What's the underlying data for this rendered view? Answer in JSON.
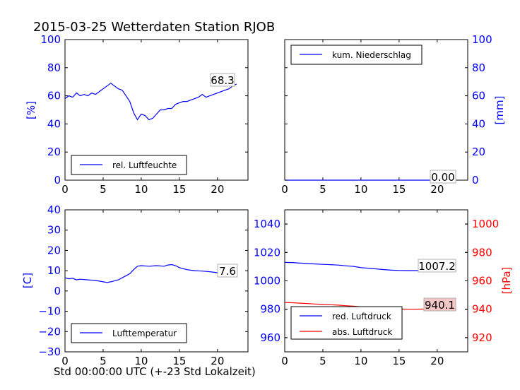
{
  "figure": {
    "title": "2015-03-25 Wetterdaten Station RJOB",
    "xlabel": "Std 00:00:00 UTC (+-23 Std Lokalzeit)"
  },
  "colors": {
    "blue": "#0000ff",
    "red": "#ff0000",
    "black": "#000000",
    "pressure_annotation_bg": "#f4c6c6"
  },
  "chart_data": [
    {
      "id": "humidity",
      "type": "line",
      "xlim": [
        0,
        24
      ],
      "ylim": [
        0,
        100
      ],
      "xticks": [
        "0",
        "5",
        "10",
        "15",
        "20"
      ],
      "yticks": [
        "0",
        "20",
        "40",
        "60",
        "80",
        "100"
      ],
      "ylabel": "[%]",
      "ylabel_side": "left",
      "legend": {
        "location": "lower-left",
        "entries": [
          "rel. Luftfeuchte"
        ]
      },
      "annotation": "68.3",
      "series": [
        {
          "name": "rel. Luftfeuchte",
          "color": "#0000ff",
          "x": [
            0,
            0.5,
            1,
            1.5,
            2,
            2.5,
            3,
            3.5,
            4,
            4.5,
            5,
            5.5,
            6,
            6.5,
            7,
            7.5,
            8,
            8.5,
            9,
            9.5,
            10,
            10.5,
            11,
            11.5,
            12,
            12.5,
            13,
            13.5,
            14,
            14.5,
            15,
            15.5,
            16,
            16.5,
            17,
            17.5,
            18,
            18.5,
            19,
            19.5,
            20,
            20.5,
            21,
            21.5,
            22,
            22.5
          ],
          "y": [
            58,
            60,
            59,
            62,
            60,
            61,
            60,
            62,
            61,
            63,
            65,
            67,
            69,
            67,
            65,
            64,
            60,
            56,
            48,
            43,
            47,
            46,
            43,
            44,
            47,
            50,
            50,
            51,
            51,
            54,
            55,
            56,
            56,
            57,
            58,
            59,
            61,
            59,
            60,
            61,
            62,
            63,
            64,
            65,
            67,
            68.3
          ]
        }
      ]
    },
    {
      "id": "precipitation",
      "type": "line",
      "xlim": [
        0,
        24
      ],
      "ylim": [
        0,
        100
      ],
      "xticks": [
        "0",
        "5",
        "10",
        "15",
        "20"
      ],
      "yticks": [
        "0",
        "20",
        "40",
        "60",
        "80",
        "100"
      ],
      "ylabel": "[mm]",
      "ylabel_side": "right",
      "legend": {
        "location": "upper-left",
        "entries": [
          "kum. Niederschlag"
        ]
      },
      "annotation": "0.00",
      "series": [
        {
          "name": "kum. Niederschlag",
          "color": "#0000ff",
          "x": [
            0,
            22.5
          ],
          "y": [
            0,
            0
          ]
        }
      ]
    },
    {
      "id": "temperature",
      "type": "line",
      "xlim": [
        0,
        24
      ],
      "ylim": [
        -30,
        40
      ],
      "xticks": [
        "0",
        "5",
        "10",
        "15",
        "20"
      ],
      "yticks": [
        "−30",
        "−20",
        "−10",
        "0",
        "10",
        "20",
        "30",
        "40"
      ],
      "ytick_values": [
        -30,
        -20,
        -10,
        0,
        10,
        20,
        30,
        40
      ],
      "ylabel": "[C]",
      "ylabel_side": "left",
      "legend": {
        "location": "lower-left",
        "entries": [
          "Lufttemperatur"
        ]
      },
      "annotation": "7.6",
      "series": [
        {
          "name": "Lufttemperatur",
          "color": "#0000ff",
          "x": [
            0,
            0.5,
            1,
            1.5,
            2,
            3,
            4,
            5,
            5.5,
            6,
            7,
            8,
            8.5,
            9,
            9.5,
            10,
            11,
            12,
            13,
            13.5,
            14,
            14.5,
            15,
            16,
            17,
            18,
            19,
            20,
            21,
            21.5,
            22,
            22.5
          ],
          "y": [
            6.5,
            6,
            6.3,
            5.5,
            5.8,
            5.5,
            5.2,
            4.5,
            4.2,
            4.5,
            5.5,
            7.5,
            8.5,
            10.5,
            12.2,
            12.5,
            12.2,
            12.5,
            12.2,
            12.8,
            13,
            12.5,
            11.5,
            10.5,
            10,
            9.8,
            9.5,
            9,
            8.8,
            8.2,
            7.8,
            7.6
          ]
        }
      ]
    },
    {
      "id": "pressure",
      "type": "line",
      "xlim": [
        0,
        24
      ],
      "xticks": [
        "0",
        "5",
        "10",
        "15",
        "20"
      ],
      "ylim_left": [
        950,
        1050
      ],
      "yticks_left": [
        "960",
        "980",
        "1000",
        "1020",
        "1040"
      ],
      "ylim_right": [
        910,
        1010
      ],
      "yticks_right": [
        "920",
        "940",
        "960",
        "980",
        "1000"
      ],
      "ylabel_right": "[hPa]",
      "legend": {
        "location": "lower-left",
        "entries": [
          "red. Luftdruck",
          "abs. Luftdruck"
        ]
      },
      "annotations": [
        "1007.2",
        "940.1"
      ],
      "series": [
        {
          "name": "red. Luftdruck",
          "axis": "left",
          "color": "#0000ff",
          "x": [
            0,
            1,
            2,
            3,
            4,
            5,
            6,
            7,
            8,
            9,
            10,
            11,
            12,
            13,
            14,
            15,
            16,
            17,
            18,
            19,
            20,
            21,
            22,
            22.5
          ],
          "y": [
            1013,
            1012.9,
            1012.5,
            1012.2,
            1011.9,
            1011.6,
            1011.4,
            1011.1,
            1010.6,
            1010.2,
            1009.3,
            1008.9,
            1008.4,
            1007.9,
            1007.5,
            1007.3,
            1007.2,
            1007.2,
            1007.3,
            1007.3,
            1007.3,
            1007.2,
            1007.2,
            1007.2
          ]
        },
        {
          "name": "abs. Luftdruck",
          "axis": "right",
          "color": "#ff0000",
          "x": [
            0,
            1,
            2,
            3,
            4,
            5,
            6,
            7,
            8,
            9,
            10,
            11,
            12,
            13,
            14,
            15,
            16,
            17,
            18,
            19,
            20,
            21,
            22,
            22.5
          ],
          "y": [
            944.8,
            944.6,
            944.3,
            944.0,
            943.7,
            943.4,
            943.2,
            942.9,
            942.5,
            942.2,
            941.7,
            941.3,
            940.9,
            940.6,
            940.3,
            940.1,
            940.0,
            940.0,
            940.1,
            940.1,
            940.1,
            940.1,
            940.1,
            940.1
          ]
        }
      ]
    }
  ]
}
